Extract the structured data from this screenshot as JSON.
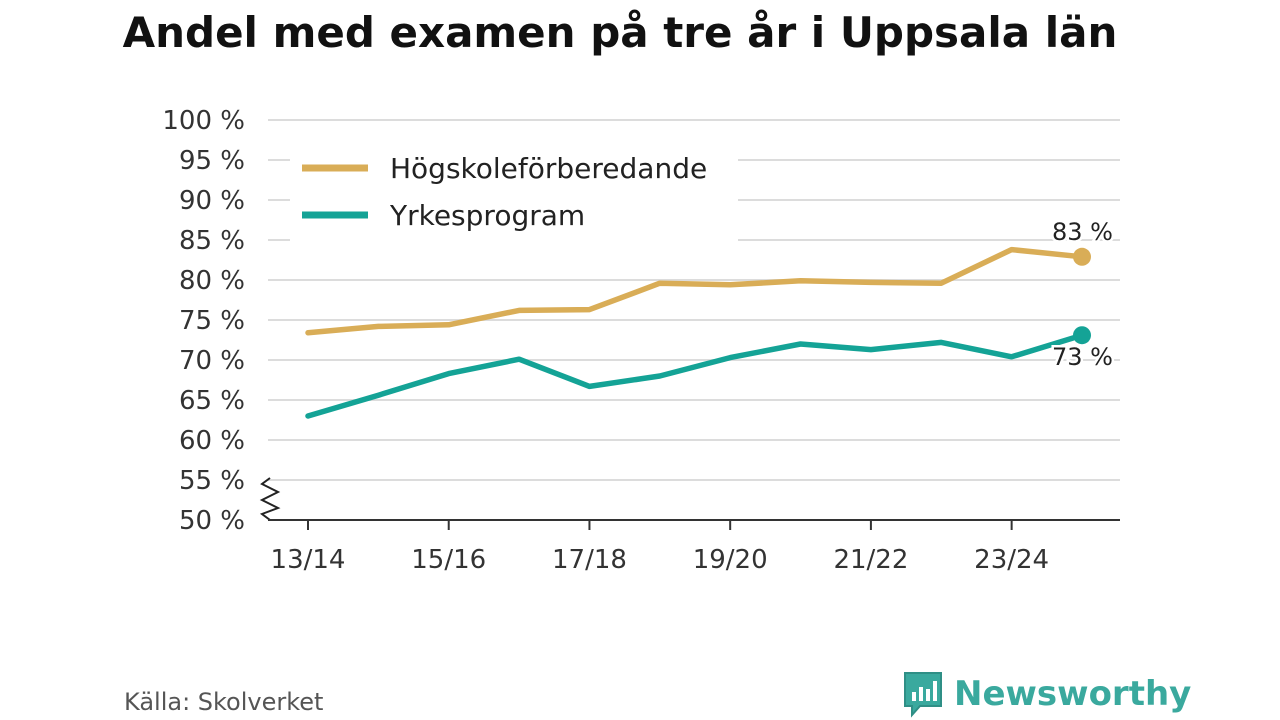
{
  "title": "Andel med examen på tre år i Uppsala län",
  "source": "Källa: Skolverket",
  "brand": {
    "name": "Newsworthy",
    "icon": "newsworthy-logo-icon",
    "color": "#3aa99e"
  },
  "chart_data": {
    "type": "line",
    "title": "Andel med examen på tre år i Uppsala län",
    "xlabel": "",
    "ylabel": "",
    "ylim": [
      50,
      100
    ],
    "y_ticks": [
      "100 %",
      "95 %",
      "90 %",
      "85 %",
      "80 %",
      "75 %",
      "70 %",
      "65 %",
      "60 %",
      "55 %",
      "50 %"
    ],
    "x_tick_labels": [
      "13/14",
      "15/16",
      "17/18",
      "19/20",
      "21/22",
      "23/24"
    ],
    "categories": [
      "13/14",
      "14/15",
      "15/16",
      "16/17",
      "17/18",
      "18/19",
      "19/20",
      "20/21",
      "21/22",
      "22/23",
      "23/24",
      "24/25"
    ],
    "series": [
      {
        "name": "Högskoleförberedande",
        "color": "#d9ad57",
        "values": [
          73.4,
          74.2,
          74.4,
          76.2,
          76.3,
          79.6,
          79.4,
          79.9,
          79.7,
          79.6,
          83.8,
          82.9
        ],
        "end_label": "83 %"
      },
      {
        "name": "Yrkesprogram",
        "color": "#14a396",
        "values": [
          63.0,
          65.6,
          68.3,
          70.1,
          66.7,
          68.0,
          70.3,
          72.0,
          71.3,
          72.2,
          70.4,
          73.1
        ],
        "end_label": "73 %"
      }
    ],
    "legend_position": "top-left",
    "grid": true
  }
}
